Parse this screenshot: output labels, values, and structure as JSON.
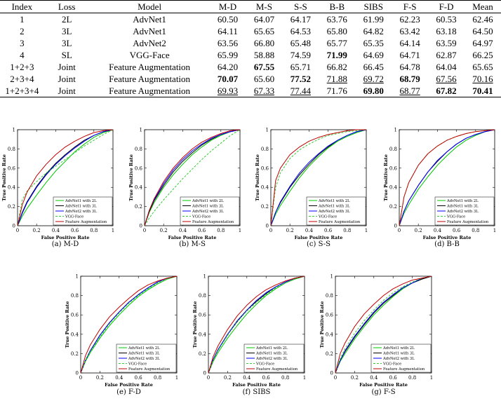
{
  "table": {
    "headers": [
      "Index",
      "Loss",
      "Model",
      "M-D",
      "M-S",
      "S-S",
      "B-B",
      "SIBS",
      "F-S",
      "F-D",
      "Mean"
    ],
    "rows": [
      {
        "cells": [
          "1",
          "2L",
          "AdvNet1",
          "60.50",
          "64.07",
          "64.17",
          "63.76",
          "61.99",
          "62.23",
          "60.53",
          "62.46"
        ],
        "bold": [],
        "underline": []
      },
      {
        "cells": [
          "2",
          "3L",
          "AdvNet1",
          "64.11",
          "65.65",
          "64.53",
          "65.80",
          "64.82",
          "63.42",
          "63.18",
          "64.50"
        ],
        "bold": [],
        "underline": []
      },
      {
        "cells": [
          "3",
          "3L",
          "AdvNet2",
          "63.56",
          "66.80",
          "65.48",
          "65.77",
          "65.35",
          "64.14",
          "63.59",
          "64.97"
        ],
        "bold": [],
        "underline": []
      },
      {
        "cells": [
          "4",
          "SL",
          "VGG-Face",
          "65.99",
          "58.88",
          "74.59",
          "71.99",
          "64.69",
          "64.71",
          "62.87",
          "66.25"
        ],
        "bold": [
          6
        ],
        "underline": []
      },
      {
        "cells": [
          "1+2+3",
          "Joint",
          "Feature Augmentation",
          "64.20",
          "67.55",
          "65.71",
          "66.82",
          "66.45",
          "64.78",
          "64.04",
          "65.65"
        ],
        "bold": [
          4
        ],
        "underline": []
      },
      {
        "cells": [
          "2+3+4",
          "Joint",
          "Feature Augmentation",
          "70.07",
          "65.60",
          "77.52",
          "71.88",
          "69.72",
          "68.79",
          "67.56",
          "70.16"
        ],
        "bold": [
          3,
          5,
          8
        ],
        "underline": [
          6,
          7,
          9,
          10
        ]
      },
      {
        "cells": [
          "1+2+3+4",
          "Joint",
          "Feature Augmentation",
          "69.93",
          "67.33",
          "77.44",
          "71.76",
          "69.80",
          "68.77",
          "67.82",
          "70.41"
        ],
        "bold": [
          7,
          9,
          10
        ],
        "underline": [
          3,
          4,
          5,
          8
        ]
      }
    ]
  },
  "legend_entries": [
    "AdvNet1 with 2L",
    "AdvNet1 with 3L",
    "AdvNet2 with 3L",
    "VGG-Face",
    "Feature Augmentation"
  ],
  "series_colors": [
    "#00c800",
    "#000000",
    "#0000ff",
    "#33cc33",
    "#c00000"
  ],
  "series_dashed": [
    false,
    false,
    false,
    true,
    false
  ],
  "chart_data": [
    {
      "type": "line",
      "caption": "(a)  M-D",
      "xlabel": "False Positive Rate",
      "ylabel": "True Positive Rate",
      "xlim": [
        0,
        1
      ],
      "ylim": [
        0,
        1
      ],
      "ticks": [
        "0",
        "0.2",
        "0.4",
        "0.6",
        "0.8",
        "1"
      ],
      "legend_position": "bottom-right",
      "x": [
        0,
        0.05,
        0.1,
        0.2,
        0.3,
        0.4,
        0.5,
        0.6,
        0.7,
        0.8,
        0.9,
        1
      ],
      "series": [
        {
          "name": "AdvNet1 with 2L",
          "values": [
            0,
            0.1,
            0.18,
            0.32,
            0.45,
            0.57,
            0.67,
            0.77,
            0.85,
            0.92,
            0.97,
            1
          ]
        },
        {
          "name": "AdvNet1 with 3L",
          "values": [
            0,
            0.14,
            0.25,
            0.41,
            0.54,
            0.65,
            0.74,
            0.82,
            0.89,
            0.94,
            0.98,
            1
          ]
        },
        {
          "name": "AdvNet2 with 3L",
          "values": [
            0,
            0.13,
            0.24,
            0.4,
            0.53,
            0.64,
            0.73,
            0.81,
            0.88,
            0.94,
            0.98,
            1
          ]
        },
        {
          "name": "VGG-Face",
          "values": [
            0,
            0.27,
            0.36,
            0.46,
            0.55,
            0.62,
            0.69,
            0.76,
            0.83,
            0.89,
            0.95,
            1
          ]
        },
        {
          "name": "Feature Augmentation",
          "values": [
            0,
            0.22,
            0.35,
            0.52,
            0.64,
            0.74,
            0.82,
            0.88,
            0.93,
            0.97,
            0.99,
            1
          ]
        }
      ]
    },
    {
      "type": "line",
      "caption": "(b)  M-S",
      "xlabel": "False Positive Rate",
      "ylabel": "True Positive Rate",
      "xlim": [
        0,
        1
      ],
      "ylim": [
        0,
        1
      ],
      "ticks": [
        "0",
        "0.2",
        "0.4",
        "0.6",
        "0.8",
        "1"
      ],
      "legend_position": "bottom-right",
      "x": [
        0,
        0.05,
        0.1,
        0.2,
        0.3,
        0.4,
        0.5,
        0.6,
        0.7,
        0.8,
        0.9,
        1
      ],
      "series": [
        {
          "name": "AdvNet1 with 2L",
          "values": [
            0,
            0.14,
            0.24,
            0.4,
            0.53,
            0.64,
            0.74,
            0.82,
            0.89,
            0.94,
            0.98,
            1
          ]
        },
        {
          "name": "AdvNet1 with 3L",
          "values": [
            0,
            0.15,
            0.26,
            0.42,
            0.56,
            0.67,
            0.76,
            0.84,
            0.9,
            0.95,
            0.98,
            1
          ]
        },
        {
          "name": "AdvNet2 with 3L",
          "values": [
            0,
            0.16,
            0.27,
            0.44,
            0.58,
            0.69,
            0.78,
            0.85,
            0.91,
            0.95,
            0.98,
            1
          ]
        },
        {
          "name": "VGG-Face",
          "values": [
            0,
            0.08,
            0.15,
            0.27,
            0.38,
            0.49,
            0.59,
            0.69,
            0.78,
            0.86,
            0.94,
            1
          ]
        },
        {
          "name": "Feature Augmentation",
          "values": [
            0,
            0.16,
            0.28,
            0.46,
            0.6,
            0.71,
            0.8,
            0.87,
            0.92,
            0.96,
            0.99,
            1
          ]
        }
      ]
    },
    {
      "type": "line",
      "caption": "(c)  S-S",
      "xlabel": "False Positive Rate",
      "ylabel": "True Positive Rate",
      "xlim": [
        0,
        1
      ],
      "ylim": [
        0,
        1
      ],
      "ticks": [
        "0",
        "0.2",
        "0.4",
        "0.6",
        "0.8",
        "1"
      ],
      "legend_position": "bottom-right",
      "x": [
        0,
        0.05,
        0.1,
        0.2,
        0.3,
        0.4,
        0.5,
        0.6,
        0.7,
        0.8,
        0.9,
        1
      ],
      "series": [
        {
          "name": "AdvNet1 with 2L",
          "values": [
            0,
            0.12,
            0.21,
            0.36,
            0.5,
            0.62,
            0.72,
            0.81,
            0.88,
            0.93,
            0.97,
            1
          ]
        },
        {
          "name": "AdvNet1 with 3L",
          "values": [
            0,
            0.14,
            0.24,
            0.4,
            0.53,
            0.64,
            0.74,
            0.82,
            0.89,
            0.94,
            0.98,
            1
          ]
        },
        {
          "name": "AdvNet2 with 3L",
          "values": [
            0,
            0.14,
            0.25,
            0.41,
            0.55,
            0.66,
            0.75,
            0.83,
            0.89,
            0.94,
            0.98,
            1
          ]
        },
        {
          "name": "VGG-Face",
          "values": [
            0,
            0.4,
            0.55,
            0.7,
            0.79,
            0.85,
            0.9,
            0.94,
            0.96,
            0.98,
            0.99,
            1
          ]
        },
        {
          "name": "Feature Augmentation",
          "values": [
            0,
            0.47,
            0.6,
            0.74,
            0.82,
            0.88,
            0.92,
            0.95,
            0.97,
            0.99,
            1,
            1
          ]
        }
      ]
    },
    {
      "type": "line",
      "caption": "(d)  B-B",
      "xlabel": "False Positive Rate",
      "ylabel": "True Positive Rate",
      "xlim": [
        0,
        1
      ],
      "ylim": [
        0,
        1
      ],
      "ticks": [
        "0",
        "0.2",
        "0.4",
        "0.6",
        "0.8",
        "1"
      ],
      "legend_position": "bottom-right",
      "x": [
        0,
        0.05,
        0.1,
        0.2,
        0.3,
        0.4,
        0.5,
        0.6,
        0.7,
        0.8,
        0.9,
        1
      ],
      "series": [
        {
          "name": "AdvNet1 with 2L",
          "values": [
            0,
            0.13,
            0.22,
            0.38,
            0.51,
            0.63,
            0.73,
            0.82,
            0.89,
            0.94,
            0.98,
            1
          ]
        },
        {
          "name": "AdvNet1 with 3L",
          "values": [
            0,
            0.15,
            0.26,
            0.42,
            0.56,
            0.67,
            0.77,
            0.85,
            0.91,
            0.95,
            0.98,
            1
          ]
        },
        {
          "name": "AdvNet2 with 3L",
          "values": [
            0,
            0.15,
            0.26,
            0.42,
            0.56,
            0.68,
            0.77,
            0.85,
            0.91,
            0.95,
            0.98,
            1
          ]
        },
        {
          "name": "VGG-Face",
          "values": [
            0,
            0.3,
            0.45,
            0.63,
            0.75,
            0.83,
            0.89,
            0.93,
            0.96,
            0.98,
            0.99,
            1
          ]
        },
        {
          "name": "Feature Augmentation",
          "values": [
            0,
            0.3,
            0.45,
            0.63,
            0.75,
            0.83,
            0.89,
            0.93,
            0.96,
            0.98,
            0.99,
            1
          ]
        }
      ]
    },
    {
      "type": "line",
      "caption": "(e)  F-D",
      "xlabel": "False Positive Rate",
      "ylabel": "True Positive Rate",
      "xlim": [
        0,
        1
      ],
      "ylim": [
        0,
        1
      ],
      "ticks": [
        "0",
        "0.2",
        "0.4",
        "0.6",
        "0.8",
        "1"
      ],
      "legend_position": "bottom-right",
      "x": [
        0,
        0.05,
        0.1,
        0.2,
        0.3,
        0.4,
        0.5,
        0.6,
        0.7,
        0.8,
        0.9,
        1
      ],
      "series": [
        {
          "name": "AdvNet1 with 2L",
          "values": [
            0,
            0.12,
            0.21,
            0.36,
            0.49,
            0.6,
            0.7,
            0.79,
            0.86,
            0.92,
            0.97,
            1
          ]
        },
        {
          "name": "AdvNet1 with 3L",
          "values": [
            0,
            0.13,
            0.23,
            0.39,
            0.52,
            0.63,
            0.73,
            0.81,
            0.88,
            0.94,
            0.98,
            1
          ]
        },
        {
          "name": "AdvNet2 with 3L",
          "values": [
            0,
            0.13,
            0.23,
            0.39,
            0.52,
            0.63,
            0.73,
            0.81,
            0.88,
            0.94,
            0.98,
            1
          ]
        },
        {
          "name": "VGG-Face",
          "values": [
            0,
            0.13,
            0.22,
            0.37,
            0.51,
            0.62,
            0.72,
            0.8,
            0.87,
            0.93,
            0.97,
            1
          ]
        },
        {
          "name": "Feature Augmentation",
          "values": [
            0,
            0.18,
            0.29,
            0.45,
            0.58,
            0.68,
            0.77,
            0.85,
            0.91,
            0.95,
            0.98,
            1
          ]
        }
      ]
    },
    {
      "type": "line",
      "caption": "(f)  SIBS",
      "xlabel": "False Positive Rate",
      "ylabel": "True Positive Rate",
      "xlim": [
        0,
        1
      ],
      "ylim": [
        0,
        1
      ],
      "ticks": [
        "0",
        "0.2",
        "0.4",
        "0.6",
        "0.8",
        "1"
      ],
      "legend_position": "bottom-right",
      "x": [
        0,
        0.05,
        0.1,
        0.2,
        0.3,
        0.4,
        0.5,
        0.6,
        0.7,
        0.8,
        0.9,
        1
      ],
      "series": [
        {
          "name": "AdvNet1 with 2L",
          "values": [
            0,
            0.12,
            0.21,
            0.36,
            0.49,
            0.61,
            0.71,
            0.8,
            0.87,
            0.93,
            0.97,
            1
          ]
        },
        {
          "name": "AdvNet1 with 3L",
          "values": [
            0,
            0.14,
            0.24,
            0.4,
            0.53,
            0.65,
            0.74,
            0.82,
            0.89,
            0.94,
            0.98,
            1
          ]
        },
        {
          "name": "AdvNet2 with 3L",
          "values": [
            0,
            0.14,
            0.24,
            0.4,
            0.54,
            0.65,
            0.75,
            0.83,
            0.89,
            0.94,
            0.98,
            1
          ]
        },
        {
          "name": "VGG-Face",
          "values": [
            0,
            0.13,
            0.23,
            0.39,
            0.53,
            0.64,
            0.73,
            0.81,
            0.88,
            0.93,
            0.97,
            1
          ]
        },
        {
          "name": "Feature Augmentation",
          "values": [
            0,
            0.17,
            0.28,
            0.45,
            0.59,
            0.7,
            0.79,
            0.86,
            0.91,
            0.95,
            0.98,
            1
          ]
        }
      ]
    },
    {
      "type": "line",
      "caption": "(g)  F-S",
      "xlabel": "False Positive Rate",
      "ylabel": "True Positive Rate",
      "xlim": [
        0,
        1
      ],
      "ylim": [
        0,
        1
      ],
      "ticks": [
        "0",
        "0.2",
        "0.4",
        "0.6",
        "0.8",
        "1"
      ],
      "legend_position": "bottom-right",
      "x": [
        0,
        0.05,
        0.1,
        0.2,
        0.3,
        0.4,
        0.5,
        0.6,
        0.7,
        0.8,
        0.9,
        1
      ],
      "series": [
        {
          "name": "AdvNet1 with 2L",
          "values": [
            0,
            0.12,
            0.2,
            0.35,
            0.48,
            0.6,
            0.7,
            0.79,
            0.87,
            0.93,
            0.97,
            1
          ]
        },
        {
          "name": "AdvNet1 with 3L",
          "values": [
            0,
            0.13,
            0.22,
            0.37,
            0.5,
            0.62,
            0.72,
            0.8,
            0.88,
            0.93,
            0.97,
            1
          ]
        },
        {
          "name": "AdvNet2 with 3L",
          "values": [
            0,
            0.13,
            0.23,
            0.38,
            0.51,
            0.63,
            0.73,
            0.81,
            0.88,
            0.93,
            0.98,
            1
          ]
        },
        {
          "name": "VGG-Face",
          "values": [
            0,
            0.15,
            0.25,
            0.41,
            0.54,
            0.65,
            0.75,
            0.83,
            0.89,
            0.94,
            0.98,
            1
          ]
        },
        {
          "name": "Feature Augmentation",
          "values": [
            0,
            0.2,
            0.31,
            0.48,
            0.61,
            0.71,
            0.8,
            0.87,
            0.92,
            0.96,
            0.98,
            1
          ]
        }
      ]
    }
  ]
}
